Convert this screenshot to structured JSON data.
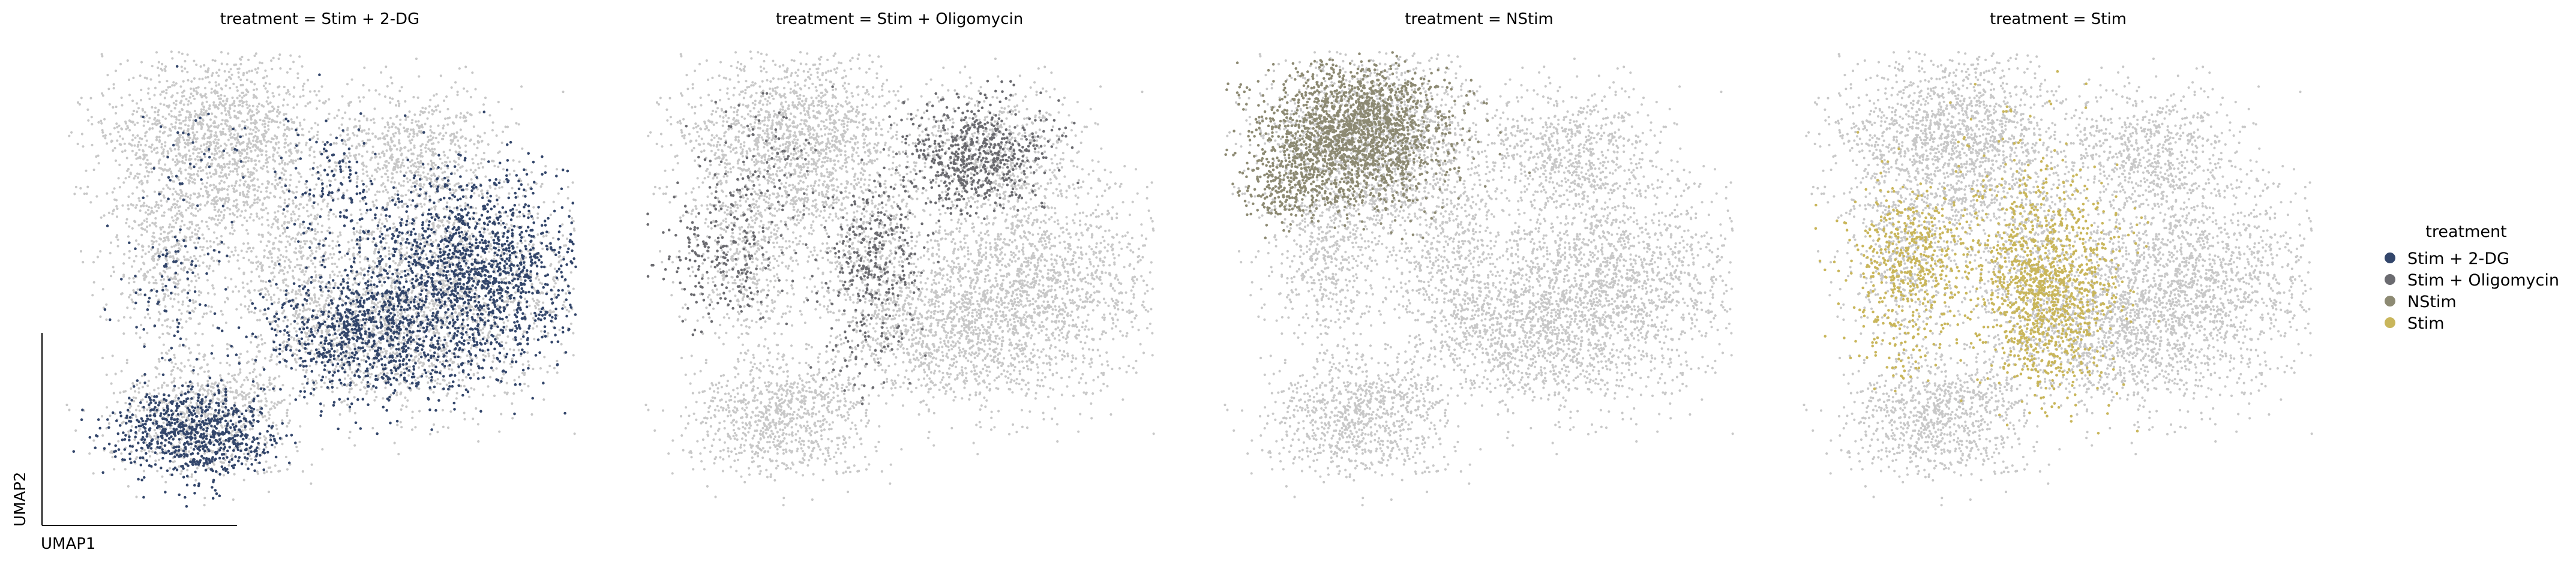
{
  "chart_data": {
    "type": "scatter",
    "subtype": "umap-embedding",
    "xlabel": "UMAP1",
    "ylabel": "UMAP2",
    "ticks": false,
    "grid": false,
    "background_color": "#c8c8c8",
    "legend": {
      "title": "treatment",
      "placement": "right",
      "entries": [
        {
          "label": "Stim + 2-DG",
          "color": "#33466b"
        },
        {
          "label": "Stim + Oligomycin",
          "color": "#6b6b70"
        },
        {
          "label": "NStim",
          "color": "#8d8a73"
        },
        {
          "label": "Stim",
          "color": "#c9b65b"
        }
      ]
    },
    "panels": [
      {
        "title": "treatment = Stim + 2-DG",
        "highlight": "Stim + 2-DG",
        "color": "#33466b",
        "regions": [
          {
            "cx": 0.8,
            "cy": 0.48,
            "sx": 0.11,
            "sy": 0.11,
            "n": 1400
          },
          {
            "cx": 0.6,
            "cy": 0.62,
            "sx": 0.1,
            "sy": 0.08,
            "n": 900
          },
          {
            "cx": 0.25,
            "cy": 0.84,
            "sx": 0.08,
            "sy": 0.05,
            "n": 750
          },
          {
            "cx": 0.52,
            "cy": 0.28,
            "sx": 0.05,
            "sy": 0.08,
            "n": 120
          },
          {
            "cx": 0.2,
            "cy": 0.5,
            "sx": 0.05,
            "sy": 0.1,
            "n": 100
          },
          {
            "cx": 0.28,
            "cy": 0.22,
            "sx": 0.07,
            "sy": 0.07,
            "n": 35
          }
        ]
      },
      {
        "title": "treatment = Stim + Oligomycin",
        "highlight": "Stim + Oligomycin",
        "color": "#6b6b70",
        "regions": [
          {
            "cx": 0.65,
            "cy": 0.23,
            "sx": 0.07,
            "sy": 0.06,
            "n": 600
          },
          {
            "cx": 0.45,
            "cy": 0.45,
            "sx": 0.05,
            "sy": 0.07,
            "n": 260
          },
          {
            "cx": 0.15,
            "cy": 0.46,
            "sx": 0.06,
            "sy": 0.07,
            "n": 220
          },
          {
            "cx": 0.23,
            "cy": 0.24,
            "sx": 0.07,
            "sy": 0.07,
            "n": 90
          },
          {
            "cx": 0.45,
            "cy": 0.65,
            "sx": 0.05,
            "sy": 0.05,
            "n": 60
          }
        ]
      },
      {
        "title": "treatment = NStim",
        "highlight": "NStim",
        "color": "#8d8a73",
        "regions": [
          {
            "cx": 0.26,
            "cy": 0.18,
            "sx": 0.09,
            "sy": 0.08,
            "n": 1800
          },
          {
            "cx": 0.13,
            "cy": 0.28,
            "sx": 0.05,
            "sy": 0.05,
            "n": 300
          }
        ]
      },
      {
        "title": "treatment = Stim",
        "highlight": "Stim",
        "color": "#c9b65b",
        "regions": [
          {
            "cx": 0.48,
            "cy": 0.52,
            "sx": 0.07,
            "sy": 0.11,
            "n": 1200
          },
          {
            "cx": 0.21,
            "cy": 0.46,
            "sx": 0.06,
            "sy": 0.08,
            "n": 500
          },
          {
            "cx": 0.4,
            "cy": 0.3,
            "sx": 0.07,
            "sy": 0.1,
            "n": 90
          },
          {
            "cx": 0.18,
            "cy": 0.64,
            "sx": 0.05,
            "sy": 0.06,
            "n": 60
          }
        ]
      }
    ],
    "background_shape": [
      {
        "cx": 0.3,
        "cy": 0.2,
        "sx": 0.11,
        "sy": 0.1,
        "n": 1700
      },
      {
        "cx": 0.68,
        "cy": 0.22,
        "sx": 0.08,
        "sy": 0.07,
        "n": 600
      },
      {
        "cx": 0.76,
        "cy": 0.5,
        "sx": 0.13,
        "sy": 0.12,
        "n": 1800
      },
      {
        "cx": 0.58,
        "cy": 0.62,
        "sx": 0.1,
        "sy": 0.08,
        "n": 900
      },
      {
        "cx": 0.2,
        "cy": 0.46,
        "sx": 0.06,
        "sy": 0.09,
        "n": 500
      },
      {
        "cx": 0.27,
        "cy": 0.8,
        "sx": 0.09,
        "sy": 0.07,
        "n": 900
      },
      {
        "cx": 0.45,
        "cy": 0.45,
        "sx": 0.06,
        "sy": 0.09,
        "n": 400
      }
    ]
  }
}
